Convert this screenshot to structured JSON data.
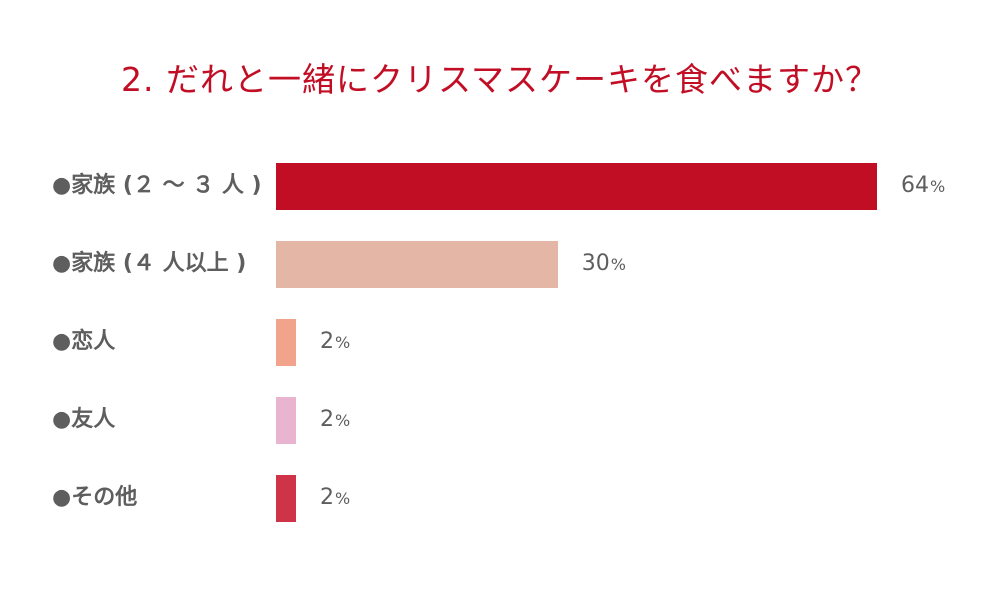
{
  "chart_data": {
    "type": "bar",
    "orientation": "horizontal",
    "title": "2. だれと一緒にクリスマスケーキを食べますか？",
    "categories": [
      "●家族 (２ ～ ３ 人 )",
      "●家族 (４ 人以上 )",
      "●恋人",
      "●友人",
      "●その他"
    ],
    "values": [
      64,
      30,
      2,
      2,
      2
    ],
    "value_labels": [
      "64",
      "30",
      "2",
      "2",
      "2"
    ],
    "unit": "%",
    "bar_colors": [
      "#c20e25",
      "#e4b6a5",
      "#f2a38c",
      "#e8b4d0",
      "#cf3347"
    ],
    "xlim": [
      0,
      64
    ],
    "grid": false,
    "legend": "none"
  },
  "colors": {
    "title": "#c20e25",
    "label_text": "#5e5e5e",
    "background": "#ffffff"
  }
}
